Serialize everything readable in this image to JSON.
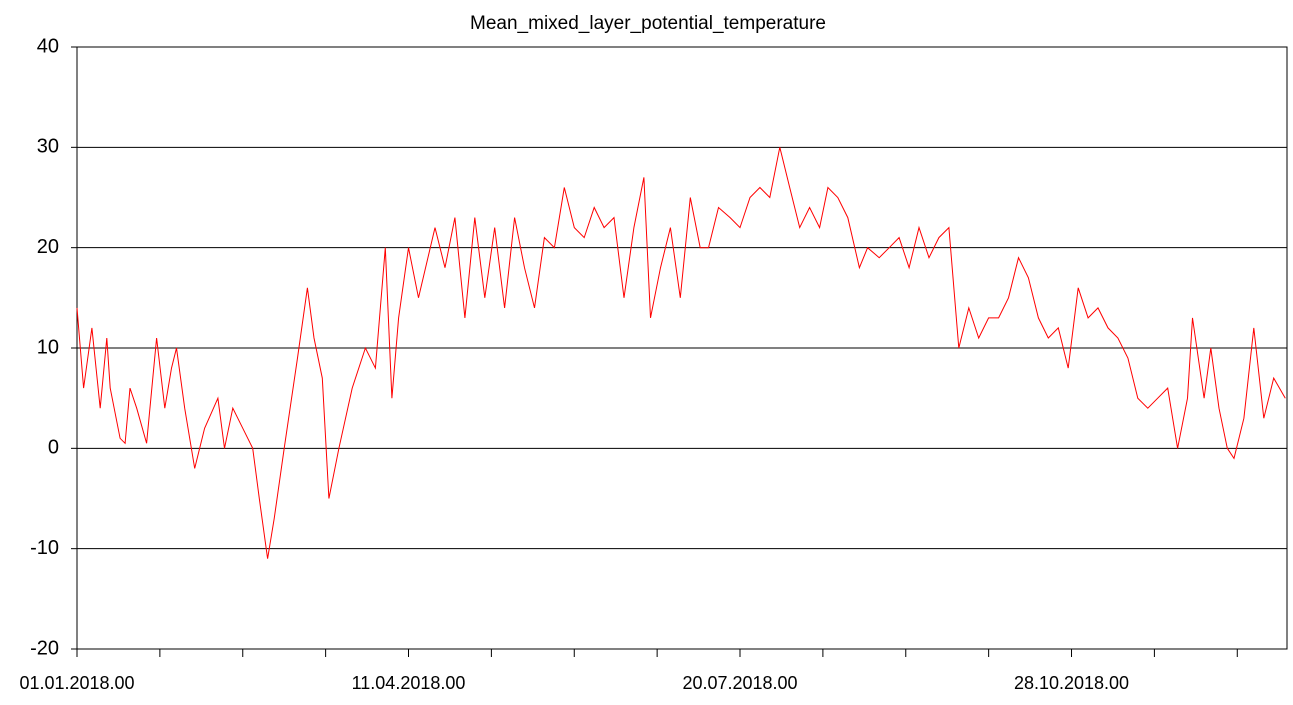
{
  "chart_data": {
    "type": "line",
    "title": "Mean_mixed_layer_potential_temperature",
    "x": [
      0,
      2,
      4.5,
      7,
      9,
      10,
      13,
      14.5,
      16,
      18,
      21,
      24,
      26.5,
      28.5,
      30,
      32.5,
      35.5,
      38.5,
      42.5,
      44.5,
      47,
      50,
      53,
      55,
      57.5,
      59.5,
      62.5,
      66.5,
      69.5,
      71.5,
      74,
      76,
      79,
      83,
      87,
      90,
      93,
      95,
      97,
      100,
      103,
      108,
      111,
      114,
      117,
      120,
      123,
      126,
      129,
      132,
      135,
      138,
      141,
      144,
      147,
      150,
      153,
      156,
      159,
      162,
      165,
      168,
      171,
      173,
      176,
      179,
      182,
      185,
      188,
      190.5,
      193.5,
      197,
      200,
      203,
      206,
      209,
      212,
      215,
      218,
      221,
      224,
      226.5,
      229.5,
      232.5,
      236,
      238.5,
      242,
      245,
      248,
      251,
      254,
      257,
      260,
      263,
      266,
      269,
      272,
      275,
      278,
      281,
      284,
      287,
      290,
      293,
      296,
      299,
      302,
      305,
      308,
      311,
      314,
      317,
      320,
      323,
      326,
      329,
      332,
      335,
      336.5,
      340,
      342,
      344.5,
      347,
      349,
      352,
      355,
      358,
      361,
      364.5
    ],
    "series": [
      {
        "name": "Mean_mixed_layer_potential_temperature",
        "color": "#ff0000",
        "values": [
          14,
          6,
          12,
          4,
          11,
          6,
          1,
          0.5,
          6,
          4,
          0.5,
          11,
          4,
          8,
          10,
          4,
          -2,
          2,
          5,
          0,
          4,
          2,
          0,
          -5,
          -11,
          -7,
          0,
          9,
          16,
          11,
          7,
          -5,
          0,
          6,
          10,
          8,
          20,
          5,
          13,
          20,
          15,
          22,
          18,
          23,
          13,
          23,
          15,
          22,
          14,
          23,
          18,
          14,
          21,
          20,
          26,
          22,
          21,
          24,
          22,
          23,
          15,
          22,
          27,
          13,
          18,
          22,
          15,
          25,
          20,
          20,
          24,
          23,
          22,
          25,
          26,
          25,
          30,
          26,
          22,
          24,
          22,
          26,
          25,
          23,
          18,
          20,
          19,
          20,
          21,
          18,
          22,
          19,
          21,
          22,
          10,
          14,
          11,
          13,
          13,
          15,
          19,
          17,
          13,
          11,
          12,
          8,
          16,
          13,
          14,
          12,
          11,
          9,
          5,
          4,
          5,
          6,
          0,
          5,
          13,
          5,
          10,
          4,
          0,
          -1,
          3,
          12,
          3,
          7,
          5
        ]
      }
    ],
    "xlim": [
      0,
      365
    ],
    "xticks": [
      {
        "value": 0,
        "label": "01.01.2018.00"
      },
      {
        "value": 100,
        "label": "11.04.2018.00"
      },
      {
        "value": 200,
        "label": "20.07.2018.00"
      },
      {
        "value": 300,
        "label": "28.10.2018.00"
      }
    ],
    "xminor_ticks": [
      25,
      50,
      75,
      125,
      150,
      175,
      225,
      250,
      275,
      325,
      350
    ],
    "ylim": [
      -20,
      40
    ],
    "yticks": [
      -20,
      -10,
      0,
      10,
      20,
      30,
      40
    ],
    "grid": true
  }
}
